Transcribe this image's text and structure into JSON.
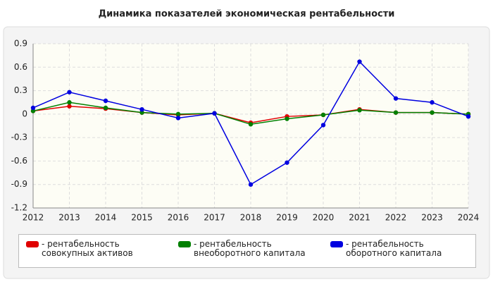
{
  "chart_data": {
    "type": "line",
    "title": "Динамика показателей экономическая рентабельности",
    "categories": [
      "2012",
      "2013",
      "2014",
      "2015",
      "2016",
      "2017",
      "2018",
      "2019",
      "2020",
      "2021",
      "2022",
      "2023",
      "2024"
    ],
    "series": [
      {
        "name": "- рентабельность совокупных активов",
        "color": "#e00000",
        "values": [
          0.04,
          0.1,
          0.07,
          0.02,
          -0.01,
          0.01,
          -0.11,
          -0.03,
          -0.01,
          0.06,
          0.02,
          0.02,
          0.0
        ]
      },
      {
        "name": "- рентабельность внеоборотного капитала",
        "color": "#008000",
        "values": [
          0.04,
          0.15,
          0.08,
          0.02,
          0.0,
          0.01,
          -0.13,
          -0.06,
          -0.01,
          0.05,
          0.02,
          0.02,
          0.0
        ]
      },
      {
        "name": "- рентабельность оборотного капитала",
        "color": "#0000e0",
        "values": [
          0.08,
          0.28,
          0.17,
          0.06,
          -0.05,
          0.01,
          -0.9,
          -0.62,
          -0.14,
          0.67,
          0.2,
          0.15,
          -0.03
        ]
      }
    ],
    "ylim": [
      -1.2,
      0.9
    ],
    "yticks": [
      0.9,
      0.6,
      0.3,
      0,
      -0.3,
      -0.6,
      -0.9,
      -1.2
    ],
    "grid": true
  }
}
